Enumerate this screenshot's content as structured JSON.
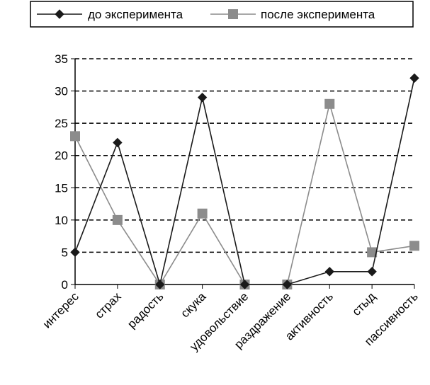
{
  "chart_data": {
    "type": "line",
    "categories": [
      "интерес",
      "страх",
      "радость",
      "скука",
      "удовольствие",
      "раздражение",
      "активность",
      "стыд",
      "пассивность"
    ],
    "series": [
      {
        "name": "до эксперимента",
        "values": [
          5,
          22,
          0,
          29,
          0,
          0,
          2,
          2,
          32
        ],
        "color": "#1a1a1a",
        "marker": "diamond"
      },
      {
        "name": "после эксперимента",
        "values": [
          23,
          10,
          0,
          11,
          0,
          0,
          28,
          5,
          6
        ],
        "color": "#8c8c8c",
        "marker": "square"
      }
    ],
    "ylim": [
      0,
      35
    ],
    "yticks": [
      0,
      5,
      10,
      15,
      20,
      25,
      30,
      35
    ],
    "grid": "horizontal-dashed",
    "legend_position": "top"
  }
}
